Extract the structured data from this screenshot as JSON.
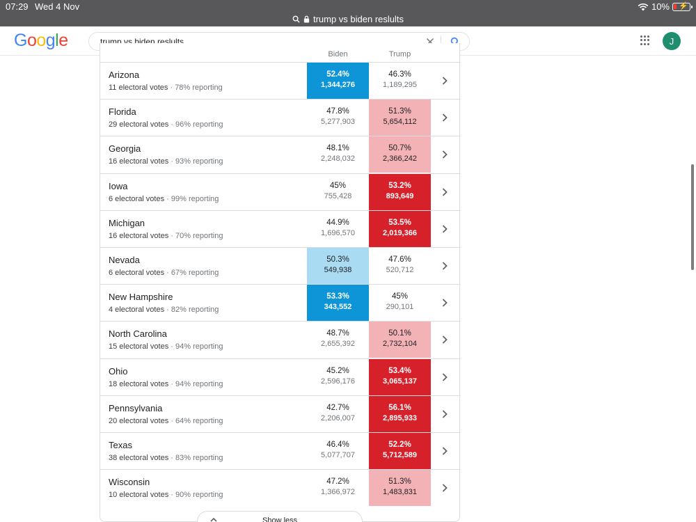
{
  "status_bar": {
    "time": "07:29",
    "date": "Wed 4 Nov",
    "battery": "10%",
    "url": "trump vs biden reslults"
  },
  "search": {
    "query": "trump vs biden reslults"
  },
  "account": {
    "initial": "J"
  },
  "table": {
    "biden_header": "Biden",
    "trump_header": "Trump",
    "rows": [
      {
        "state": "Arizona",
        "electoral": "11 electoral votes",
        "reporting": "78% reporting",
        "biden_pct": "52.4%",
        "biden_votes": "1,344,276",
        "trump_pct": "46.3%",
        "trump_votes": "1,189,295"
      },
      {
        "state": "Florida",
        "electoral": "29 electoral votes",
        "reporting": "96% reporting",
        "biden_pct": "47.8%",
        "biden_votes": "5,277,903",
        "trump_pct": "51.3%",
        "trump_votes": "5,654,112"
      },
      {
        "state": "Georgia",
        "electoral": "16 electoral votes",
        "reporting": "93% reporting",
        "biden_pct": "48.1%",
        "biden_votes": "2,248,032",
        "trump_pct": "50.7%",
        "trump_votes": "2,366,242"
      },
      {
        "state": "Iowa",
        "electoral": "6 electoral votes",
        "reporting": "99% reporting",
        "biden_pct": "45%",
        "biden_votes": "755,428",
        "trump_pct": "53.2%",
        "trump_votes": "893,649"
      },
      {
        "state": "Michigan",
        "electoral": "16 electoral votes",
        "reporting": "70% reporting",
        "biden_pct": "44.9%",
        "biden_votes": "1,696,570",
        "trump_pct": "53.5%",
        "trump_votes": "2,019,366"
      },
      {
        "state": "Nevada",
        "electoral": "6 electoral votes",
        "reporting": "67% reporting",
        "biden_pct": "50.3%",
        "biden_votes": "549,938",
        "trump_pct": "47.6%",
        "trump_votes": "520,712"
      },
      {
        "state": "New Hampshire",
        "electoral": "4 electoral votes",
        "reporting": "82% reporting",
        "biden_pct": "53.3%",
        "biden_votes": "343,552",
        "trump_pct": "45%",
        "trump_votes": "290,101"
      },
      {
        "state": "North Carolina",
        "electoral": "15 electoral votes",
        "reporting": "94% reporting",
        "biden_pct": "48.7%",
        "biden_votes": "2,655,392",
        "trump_pct": "50.1%",
        "trump_votes": "2,732,104"
      },
      {
        "state": "Ohio",
        "electoral": "18 electoral votes",
        "reporting": "94% reporting",
        "biden_pct": "45.2%",
        "biden_votes": "2,596,176",
        "trump_pct": "53.4%",
        "trump_votes": "3,065,137"
      },
      {
        "state": "Pennsylvania",
        "electoral": "20 electoral votes",
        "reporting": "64% reporting",
        "biden_pct": "42.7%",
        "biden_votes": "2,206,007",
        "trump_pct": "56.1%",
        "trump_votes": "2,895,933"
      },
      {
        "state": "Texas",
        "electoral": "38 electoral votes",
        "reporting": "83% reporting",
        "biden_pct": "46.4%",
        "biden_votes": "5,077,707",
        "trump_pct": "52.2%",
        "trump_votes": "5,712,589"
      },
      {
        "state": "Wisconsin",
        "electoral": "10 electoral votes",
        "reporting": "90% reporting",
        "biden_pct": "47.2%",
        "biden_votes": "1,366,972",
        "trump_pct": "51.3%",
        "trump_votes": "1,483,831"
      }
    ]
  },
  "show_less_label": "Show less",
  "colors": {
    "biden_light": "#a9dcf2",
    "biden_dark": "#0e95d8",
    "trump_light": "#f3b2b5",
    "trump_dark": "#d7212a"
  },
  "icons": {
    "row_chevron": "chevron-right-icon",
    "show_less": "chevron-up-icon"
  }
}
